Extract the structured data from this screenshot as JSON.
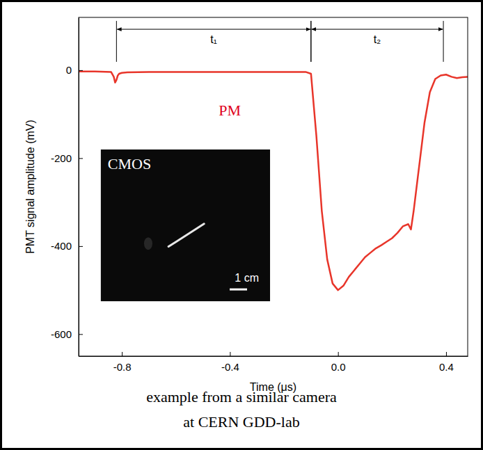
{
  "chart_data": {
    "type": "line",
    "x_label": "Time (μs)",
    "y_label": "PMT signal amplitude (mV)",
    "xlim": [
      -0.96,
      0.48
    ],
    "ylim": [
      -650,
      120
    ],
    "xticks": [
      -0.8,
      -0.4,
      {
        "value": 0,
        "label": "0.0"
      },
      0.4
    ],
    "yticks": [
      -600,
      -400,
      -200,
      0
    ],
    "grid": false,
    "x": [
      -0.96,
      -0.9,
      -0.84,
      -0.83,
      -0.825,
      -0.82,
      -0.815,
      -0.81,
      -0.8,
      -0.78,
      -0.7,
      -0.6,
      -0.5,
      -0.4,
      -0.3,
      -0.2,
      -0.12,
      -0.1,
      -0.08,
      -0.06,
      -0.04,
      -0.02,
      0,
      0.02,
      0.04,
      0.06,
      0.08,
      0.1,
      0.12,
      0.14,
      0.16,
      0.18,
      0.2,
      0.22,
      0.24,
      0.26,
      0.27,
      0.28,
      0.3,
      0.32,
      0.34,
      0.36,
      0.38,
      0.4,
      0.42,
      0.44,
      0.46,
      0.48
    ],
    "series": [
      {
        "name": "PM",
        "color": "#e8352a",
        "values": [
          -3,
          -3,
          -4,
          -15,
          -28,
          -22,
          -12,
          -8,
          -6,
          -5,
          -4,
          -4,
          -4,
          -4,
          -4,
          -4,
          -4,
          -8,
          -150,
          -320,
          -430,
          -485,
          -500,
          -490,
          -470,
          -455,
          -440,
          -425,
          -415,
          -405,
          -398,
          -390,
          -382,
          -370,
          -355,
          -350,
          -362,
          -320,
          -220,
          -120,
          -50,
          -20,
          -12,
          -10,
          -15,
          -18,
          -16,
          -15
        ]
      }
    ],
    "series_label_color": "#e0001a",
    "annotations": [
      {
        "text": "t₁",
        "x": [
          -0.82,
          -0.1
        ],
        "y": 93
      },
      {
        "text": "t₂",
        "x": [
          -0.1,
          0.39
        ],
        "y": 93
      }
    ],
    "inset_title": "CMOS",
    "inset_scale_label": "1 cm",
    "caption": [
      "example from a similar camera",
      "at CERN GDD-lab"
    ]
  }
}
